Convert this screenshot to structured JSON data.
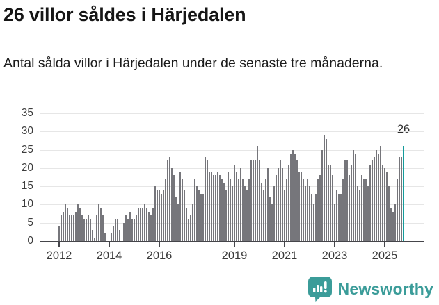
{
  "header": {
    "title": "26 villor såldes i Härjedalen",
    "subtitle": "Antal sålda villor i Härjedalen under de senaste tre månaderna."
  },
  "footer": {
    "brand": "Newsworthy",
    "logo_color": "#3b9c99"
  },
  "colors": {
    "bar": "#76767b",
    "highlight": "#149b9b",
    "gridline": "#e6e6e6",
    "axis": "#45454a",
    "text": "#1c1c1c"
  },
  "chart_data": {
    "type": "bar",
    "title": "26 villor såldes i Härjedalen",
    "subtitle": "Antal sålda villor i Härjedalen under de senaste tre månaderna.",
    "xlabel": "",
    "ylabel": "",
    "ylim": [
      0,
      35
    ],
    "grid": true,
    "start_month": "2012-01",
    "frequency": "monthly (rullande 3 månader)",
    "yticks": [
      0,
      5,
      10,
      15,
      20,
      25,
      30,
      35
    ],
    "xticks": [
      {
        "label": "2012",
        "month_index": 0
      },
      {
        "label": "2014",
        "month_index": 24
      },
      {
        "label": "2016",
        "month_index": 48
      },
      {
        "label": "2019",
        "month_index": 84
      },
      {
        "label": "2021",
        "month_index": 108
      },
      {
        "label": "2023",
        "month_index": 132
      },
      {
        "label": "2025",
        "month_index": 156
      }
    ],
    "values": [
      4,
      7,
      8,
      10,
      9,
      7,
      7,
      7,
      8,
      10,
      9,
      7,
      6,
      6,
      7,
      6,
      3,
      1,
      7,
      10,
      9,
      7,
      2,
      0,
      0,
      2,
      4,
      6,
      6,
      3,
      0,
      5,
      7,
      6,
      8,
      6,
      6,
      7,
      9,
      9,
      9,
      10,
      9,
      8,
      7,
      9,
      15,
      14,
      14,
      13,
      14,
      17,
      22,
      23,
      20,
      18,
      12,
      10,
      19,
      17,
      14,
      9,
      6,
      7,
      10,
      17,
      15,
      14,
      13,
      13,
      23,
      22,
      19,
      19,
      18,
      18,
      19,
      18,
      17,
      16,
      14,
      19,
      17,
      15,
      21,
      19,
      17,
      20,
      17,
      15,
      14,
      17,
      22,
      22,
      22,
      26,
      22,
      16,
      14,
      17,
      20,
      12,
      10,
      15,
      18,
      20,
      22,
      20,
      14,
      17,
      21,
      24,
      25,
      24,
      22,
      19,
      19,
      17,
      15,
      17,
      15,
      13,
      10,
      13,
      17,
      18,
      25,
      29,
      28,
      21,
      21,
      18,
      10,
      14,
      13,
      13,
      17,
      22,
      22,
      18,
      21,
      25,
      24,
      15,
      14,
      18,
      17,
      17,
      15,
      21,
      22,
      23,
      25,
      24,
      26,
      21,
      20,
      19,
      15,
      9,
      8,
      10,
      17,
      23,
      23,
      26
    ],
    "highlight_last": true,
    "annotation": {
      "text": "26",
      "value": 26
    },
    "legend": null
  }
}
